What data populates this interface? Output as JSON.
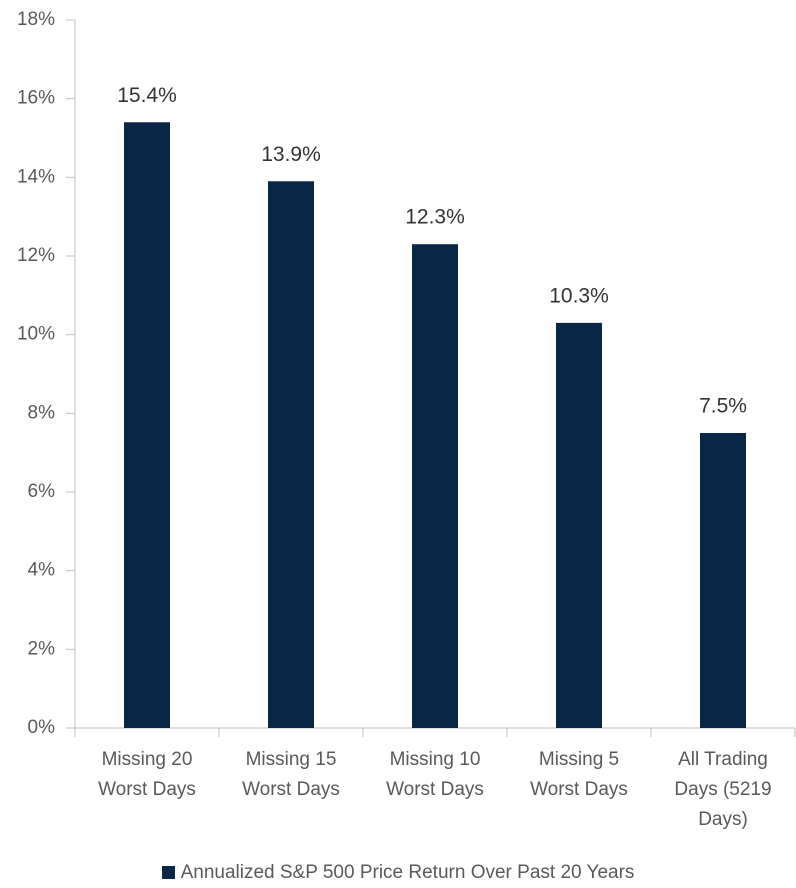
{
  "chart_data": {
    "type": "bar",
    "categories": [
      "Missing 20 Worst Days",
      "Missing 15 Worst Days",
      "Missing 10 Worst Days",
      "Missing 5 Worst Days",
      "All Trading Days (5219 Days)"
    ],
    "series": [
      {
        "name": "Annualized S&P 500 Price Return Over Past 20 Years",
        "color": "#0a2748",
        "values": [
          15.4,
          13.9,
          12.3,
          10.3,
          7.5
        ],
        "value_labels": [
          "15.4%",
          "13.9%",
          "12.3%",
          "10.3%",
          "7.5%"
        ]
      }
    ],
    "ylim": [
      0,
      18
    ],
    "yticks": [
      {
        "value": 0,
        "label": "0%"
      },
      {
        "value": 2,
        "label": "2%"
      },
      {
        "value": 4,
        "label": "4%"
      },
      {
        "value": 6,
        "label": "6%"
      },
      {
        "value": 8,
        "label": "8%"
      },
      {
        "value": 10,
        "label": "10%"
      },
      {
        "value": 12,
        "label": "12%"
      },
      {
        "value": 14,
        "label": "14%"
      },
      {
        "value": 16,
        "label": "16%"
      },
      {
        "value": 18,
        "label": "18%"
      }
    ],
    "grid": false,
    "legend": "bottom"
  }
}
